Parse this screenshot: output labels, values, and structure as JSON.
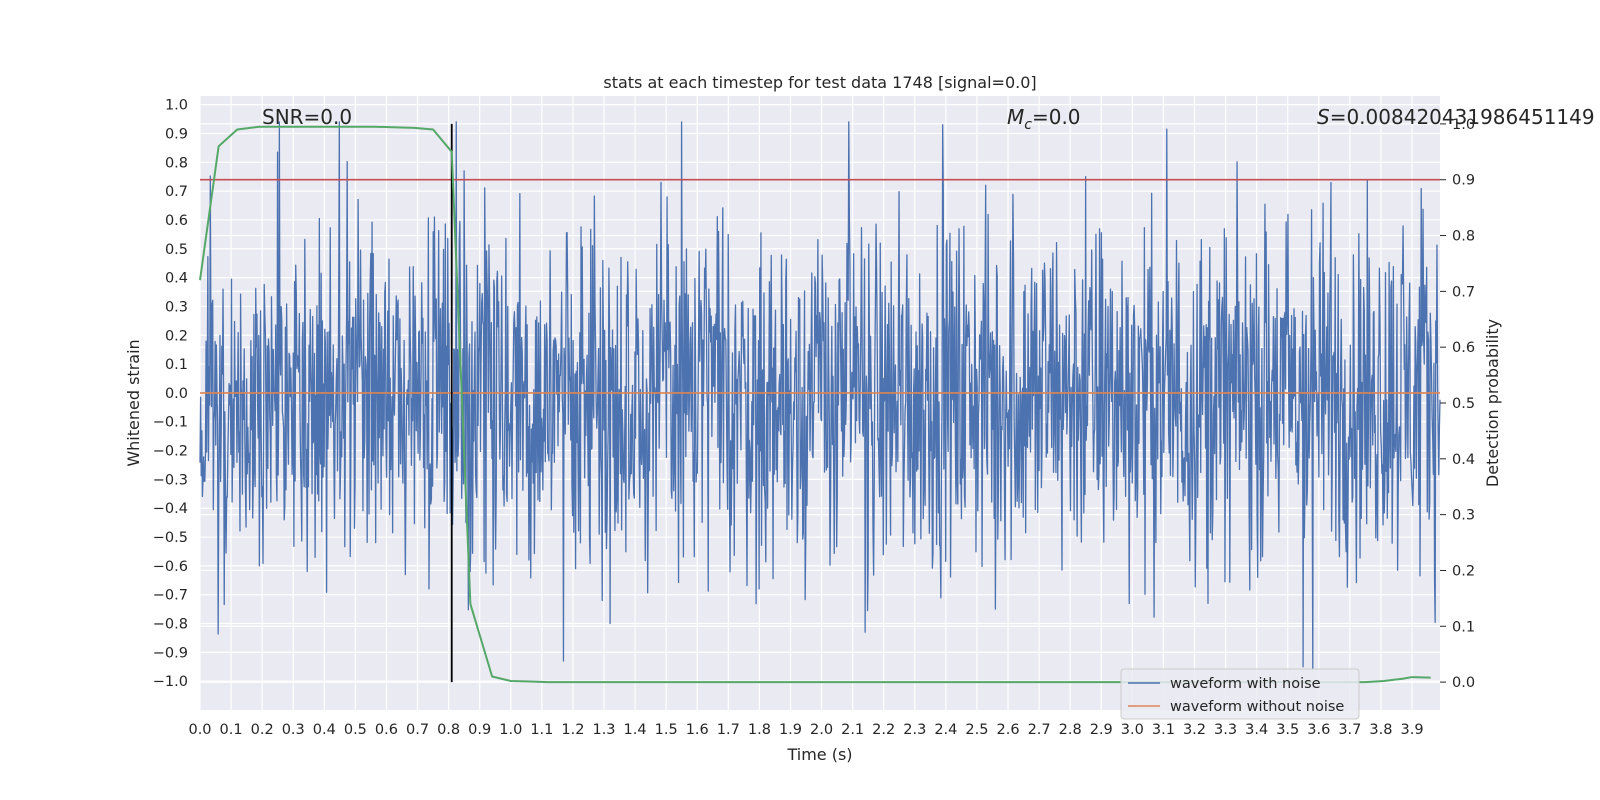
{
  "chart_data": {
    "type": "line",
    "title": "stats at each timestep for test data 1748 [signal=0.0]",
    "xlabel": "Time (s)",
    "ylabel": "Whitened strain",
    "y2label": "Detection probability",
    "xlim": [
      0.0,
      3.99
    ],
    "ylim": [
      -1.1,
      1.03
    ],
    "y2lim": [
      -0.05,
      1.05
    ],
    "xticks": [
      "0.0",
      "0.1",
      "0.2",
      "0.3",
      "0.4",
      "0.5",
      "0.6",
      "0.7",
      "0.8",
      "0.9",
      "1.0",
      "1.1",
      "1.2",
      "1.3",
      "1.4",
      "1.5",
      "1.6",
      "1.7",
      "1.8",
      "1.9",
      "2.0",
      "2.1",
      "2.2",
      "2.3",
      "2.4",
      "2.5",
      "2.6",
      "2.7",
      "2.8",
      "2.9",
      "3.0",
      "3.1",
      "3.2",
      "3.3",
      "3.4",
      "3.5",
      "3.6",
      "3.7",
      "3.8",
      "3.9"
    ],
    "yticks": [
      "1.0",
      "0.9",
      "0.8",
      "0.7",
      "0.6",
      "0.5",
      "0.4",
      "0.3",
      "0.2",
      "0.1",
      "0.0",
      "−0.1",
      "−0.2",
      "−0.3",
      "−0.4",
      "−0.5",
      "−0.6",
      "−0.7",
      "−0.8",
      "−0.9",
      "−1.0"
    ],
    "y2ticks": [
      "0.0",
      "0.1",
      "0.2",
      "0.3",
      "0.4",
      "0.5",
      "0.6",
      "0.7",
      "0.8",
      "0.9",
      "1.0"
    ],
    "annotations": {
      "snr": "SNR=0.0",
      "mc_symbol": "M",
      "mc_sub": "c",
      "mc_value": "=0.0",
      "s_symbol": "S",
      "s_value": "=0.008420431986451149"
    },
    "legend_position": "lower-right",
    "series": [
      {
        "name": "waveform with noise",
        "color": "#4c72b0",
        "samples": 2048,
        "range": [
          -0.97,
          0.94
        ],
        "spikes": [
          [
            0.85,
            0.77
          ],
          [
            0.87,
            -0.62
          ],
          [
            1.17,
            -0.93
          ],
          [
            1.32,
            -0.8
          ],
          [
            1.8,
            -0.68
          ],
          [
            2.14,
            -0.83
          ],
          [
            2.39,
            0.93
          ],
          [
            2.56,
            -0.75
          ],
          [
            2.85,
            0.75
          ],
          [
            3.55,
            -0.95
          ],
          [
            3.58,
            -0.96
          ],
          [
            3.64,
            0.73
          ]
        ]
      },
      {
        "name": "waveform without noise",
        "color": "#dd8452",
        "value": 0.0
      }
    ],
    "detection_probability": {
      "color": "#55a868",
      "x": [
        0.0,
        0.06,
        0.12,
        0.19,
        0.25,
        0.31,
        0.37,
        0.44,
        0.5,
        0.56,
        0.62,
        0.69,
        0.75,
        0.81,
        0.87,
        0.94,
        1.0,
        1.06,
        1.12,
        1.19,
        1.5,
        2.0,
        2.5,
        3.0,
        3.5,
        3.75,
        3.81,
        3.87,
        3.9,
        3.96
      ],
      "y": [
        0.72,
        0.96,
        0.99,
        0.995,
        0.995,
        0.995,
        0.995,
        0.995,
        0.995,
        0.995,
        0.994,
        0.993,
        0.99,
        0.95,
        0.14,
        0.01,
        0.002,
        0.001,
        0.0,
        0.0,
        0.0,
        0.0,
        0.0,
        0.0,
        0.0,
        0.0,
        0.002,
        0.006,
        0.009,
        0.008
      ]
    },
    "threshold": {
      "value": 0.9,
      "axis": "y2",
      "color": "#c44e52"
    },
    "marker": {
      "x": 0.81,
      "color": "#000000"
    }
  },
  "legend": {
    "items": [
      {
        "label": "waveform with noise",
        "color": "#4c72b0"
      },
      {
        "label": "waveform without noise",
        "color": "#dd8452"
      }
    ]
  }
}
